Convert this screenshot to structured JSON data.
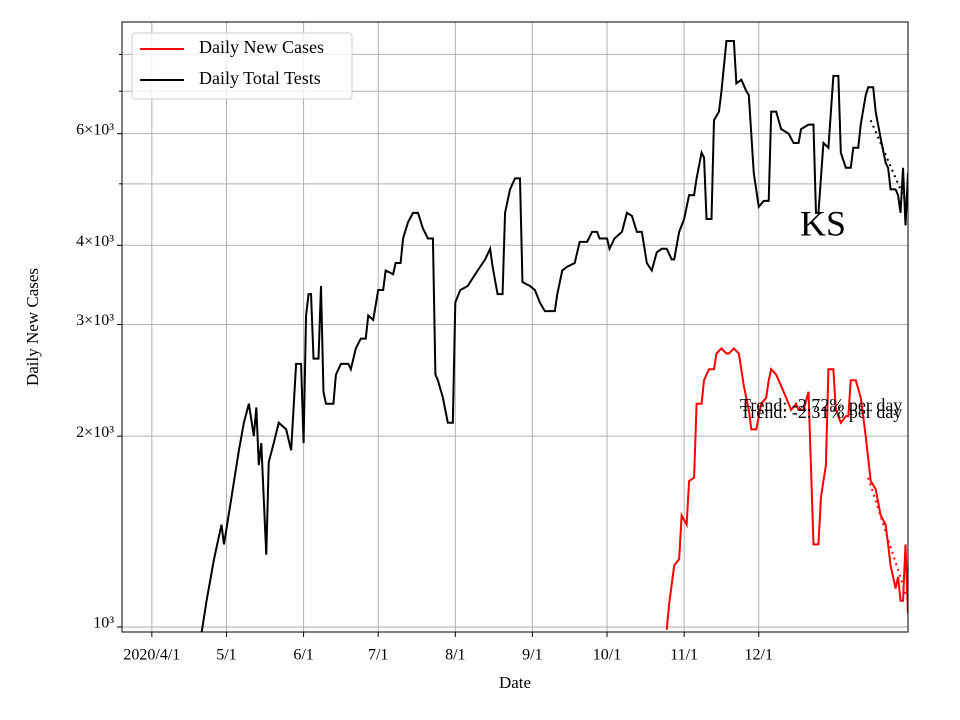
{
  "chart_data": {
    "type": "line",
    "title": "KS",
    "xlabel": "Date",
    "ylabel": "Daily New Cases",
    "log_y": true,
    "grid": true,
    "legend": "upper left",
    "xlim": [
      "2020-03-20",
      "2021-01-30"
    ],
    "xticks": [
      {
        "value": "2020-04-01",
        "label": "2020/4/1"
      },
      {
        "value": "2020-05-01",
        "label": "5/1"
      },
      {
        "value": "2020-06-01",
        "label": "6/1"
      },
      {
        "value": "2020-07-01",
        "label": "7/1"
      },
      {
        "value": "2020-08-01",
        "label": "8/1"
      },
      {
        "value": "2020-09-01",
        "label": "9/1"
      },
      {
        "value": "2020-10-01",
        "label": "10/1"
      },
      {
        "value": "2020-11-01",
        "label": "11/1"
      },
      {
        "value": "2020-12-01",
        "label": "12/1"
      }
    ],
    "ylim": [
      982,
      9000
    ],
    "yticks": [
      {
        "value": 1000,
        "label": "10³"
      },
      {
        "value": 2000,
        "label": "2×10³"
      },
      {
        "value": 3000,
        "label": "3×10³"
      },
      {
        "value": 4000,
        "label": "4×10³"
      },
      {
        "value": 6000,
        "label": "6×10³"
      }
    ],
    "yminorticks": [
      5000,
      7000,
      8000
    ],
    "annotations": [
      "Trend: -2.72% per day",
      "Trend: -2.31% per day"
    ],
    "series": [
      {
        "name": "Daily New Cases",
        "color": "#ff0000",
        "x": [
          "2020-10-25",
          "2020-10-26",
          "2020-10-28",
          "2020-10-30",
          "2020-10-31",
          "2020-11-02",
          "2020-11-03",
          "2020-11-05",
          "2020-11-06",
          "2020-11-08",
          "2020-11-09",
          "2020-11-11",
          "2020-11-13",
          "2020-11-14",
          "2020-11-16",
          "2020-11-18",
          "2020-11-19",
          "2020-11-21",
          "2020-11-23",
          "2020-11-25",
          "2020-11-27",
          "2020-11-28",
          "2020-11-30",
          "2020-12-02",
          "2020-12-04",
          "2020-12-05",
          "2020-12-06",
          "2020-12-08",
          "2020-12-10",
          "2020-12-12",
          "2020-12-14",
          "2020-12-16",
          "2020-12-17",
          "2020-12-19",
          "2020-12-21",
          "2020-12-23",
          "2020-12-25",
          "2020-12-26",
          "2020-12-27",
          "2020-12-28",
          "2020-12-29",
          "2020-12-31",
          "2021-01-01",
          "2021-01-03",
          "2021-01-05",
          "2021-01-06",
          "2021-01-07",
          "2021-01-09",
          "2021-01-11",
          "2021-01-13",
          "2021-01-15",
          "2021-01-17",
          "2021-01-19",
          "2021-01-21",
          "2021-01-22",
          "2021-01-23",
          "2021-01-24",
          "2021-01-25",
          "2021-01-26",
          "2021-01-27",
          "2021-01-28",
          "2021-01-29",
          "2021-01-30"
        ],
        "values": [
          990,
          1090,
          1250,
          1280,
          1500,
          1450,
          1700,
          1720,
          2250,
          2250,
          2450,
          2550,
          2550,
          2700,
          2750,
          2700,
          2700,
          2750,
          2700,
          2400,
          2200,
          2050,
          2050,
          2250,
          2300,
          2450,
          2550,
          2500,
          2400,
          2300,
          2200,
          2250,
          2200,
          2200,
          2350,
          1350,
          1350,
          1600,
          1700,
          1800,
          2550,
          2550,
          2200,
          2100,
          2150,
          2150,
          2450,
          2450,
          2300,
          2000,
          1700,
          1650,
          1500,
          1450,
          1350,
          1250,
          1200,
          1150,
          1200,
          1100,
          1100,
          1350,
          1050
        ],
        "trend": {
          "x": [
            "2021-01-14",
            "2021-01-30"
          ],
          "values": [
            1720,
            1100
          ]
        }
      },
      {
        "name": "Daily Total Tests",
        "color": "#000000",
        "x": [
          "2020-04-21",
          "2020-04-23",
          "2020-04-26",
          "2020-04-29",
          "2020-04-30",
          "2020-05-03",
          "2020-05-06",
          "2020-05-08",
          "2020-05-10",
          "2020-05-12",
          "2020-05-13",
          "2020-05-14",
          "2020-05-15",
          "2020-05-17",
          "2020-05-18",
          "2020-05-20",
          "2020-05-22",
          "2020-05-25",
          "2020-05-27",
          "2020-05-29",
          "2020-05-31",
          "2020-06-01",
          "2020-06-02",
          "2020-06-03",
          "2020-06-04",
          "2020-06-05",
          "2020-06-07",
          "2020-06-08",
          "2020-06-09",
          "2020-06-10",
          "2020-06-13",
          "2020-06-14",
          "2020-06-16",
          "2020-06-19",
          "2020-06-20",
          "2020-06-22",
          "2020-06-24",
          "2020-06-26",
          "2020-06-27",
          "2020-06-29",
          "2020-07-01",
          "2020-07-03",
          "2020-07-04",
          "2020-07-07",
          "2020-07-08",
          "2020-07-10",
          "2020-07-11",
          "2020-07-13",
          "2020-07-15",
          "2020-07-17",
          "2020-07-19",
          "2020-07-21",
          "2020-07-23",
          "2020-07-24",
          "2020-07-25",
          "2020-07-27",
          "2020-07-29",
          "2020-07-31",
          "2020-08-01",
          "2020-08-03",
          "2020-08-06",
          "2020-08-08",
          "2020-08-11",
          "2020-08-13",
          "2020-08-15",
          "2020-08-16",
          "2020-08-18",
          "2020-08-20",
          "2020-08-21",
          "2020-08-23",
          "2020-08-25",
          "2020-08-27",
          "2020-08-28",
          "2020-08-31",
          "2020-09-02",
          "2020-09-04",
          "2020-09-06",
          "2020-09-08",
          "2020-09-10",
          "2020-09-11",
          "2020-09-13",
          "2020-09-15",
          "2020-09-18",
          "2020-09-20",
          "2020-09-23",
          "2020-09-25",
          "2020-09-27",
          "2020-09-28",
          "2020-10-01",
          "2020-10-02",
          "2020-10-04",
          "2020-10-07",
          "2020-10-09",
          "2020-10-11",
          "2020-10-13",
          "2020-10-15",
          "2020-10-17",
          "2020-10-19",
          "2020-10-21",
          "2020-10-23",
          "2020-10-25",
          "2020-10-27",
          "2020-10-28",
          "2020-10-30",
          "2020-11-01",
          "2020-11-03",
          "2020-11-05",
          "2020-11-06",
          "2020-11-08",
          "2020-11-09",
          "2020-11-10",
          "2020-11-12",
          "2020-11-13",
          "2020-11-15",
          "2020-11-16",
          "2020-11-18",
          "2020-11-21",
          "2020-11-22",
          "2020-11-24",
          "2020-11-26",
          "2020-11-27",
          "2020-11-29",
          "2020-12-01",
          "2020-12-03",
          "2020-12-05",
          "2020-12-06",
          "2020-12-08",
          "2020-12-10",
          "2020-12-13",
          "2020-12-15",
          "2020-12-17",
          "2020-12-18",
          "2020-12-21",
          "2020-12-23",
          "2020-12-24",
          "2020-12-25",
          "2020-12-27",
          "2020-12-29",
          "2020-12-31",
          "2021-01-02",
          "2021-01-03",
          "2021-01-05",
          "2021-01-07",
          "2021-01-08",
          "2021-01-10",
          "2021-01-11",
          "2021-01-13",
          "2021-01-14",
          "2021-01-16",
          "2021-01-17",
          "2021-01-19",
          "2021-01-21",
          "2021-01-22",
          "2021-01-23",
          "2021-01-25",
          "2021-01-26",
          "2021-01-27",
          "2021-01-28",
          "2021-01-29",
          "2021-01-30"
        ],
        "values": [
          980,
          1100,
          1280,
          1450,
          1350,
          1600,
          1900,
          2100,
          2250,
          2000,
          2220,
          1800,
          1950,
          1300,
          1820,
          1950,
          2100,
          2050,
          1900,
          2600,
          2600,
          1950,
          3100,
          3350,
          3350,
          2650,
          2650,
          3450,
          2350,
          2250,
          2250,
          2500,
          2600,
          2600,
          2550,
          2750,
          2850,
          2850,
          3100,
          3050,
          3400,
          3400,
          3650,
          3600,
          3750,
          3750,
          4100,
          4350,
          4500,
          4500,
          4250,
          4100,
          4100,
          2500,
          2450,
          2300,
          2100,
          2100,
          3250,
          3400,
          3450,
          3550,
          3700,
          3800,
          3950,
          3700,
          3350,
          3350,
          4500,
          4900,
          5100,
          5100,
          3500,
          3450,
          3400,
          3250,
          3150,
          3150,
          3150,
          3350,
          3650,
          3700,
          3750,
          4050,
          4050,
          4200,
          4200,
          4100,
          4100,
          3950,
          4100,
          4200,
          4500,
          4450,
          4200,
          4200,
          3750,
          3650,
          3900,
          3950,
          3950,
          3800,
          3800,
          4200,
          4400,
          4800,
          4800,
          5100,
          5600,
          5500,
          4400,
          4400,
          6300,
          6500,
          7000,
          8400,
          8400,
          7200,
          7300,
          7000,
          6900,
          5200,
          4600,
          4700,
          4700,
          6500,
          6500,
          6100,
          6000,
          5800,
          5800,
          6100,
          6200,
          6200,
          4500,
          4500,
          5800,
          5700,
          7400,
          7400,
          5600,
          5300,
          5300,
          5700,
          5700,
          6200,
          6900,
          7100,
          7100,
          6500,
          5900,
          5400,
          5300,
          4900,
          4900,
          4800,
          4500,
          5300,
          4300,
          5200
        ],
        "trend": {
          "x": [
            "2021-01-15",
            "2021-01-30"
          ],
          "values": [
            6300,
            4600
          ]
        }
      }
    ]
  }
}
